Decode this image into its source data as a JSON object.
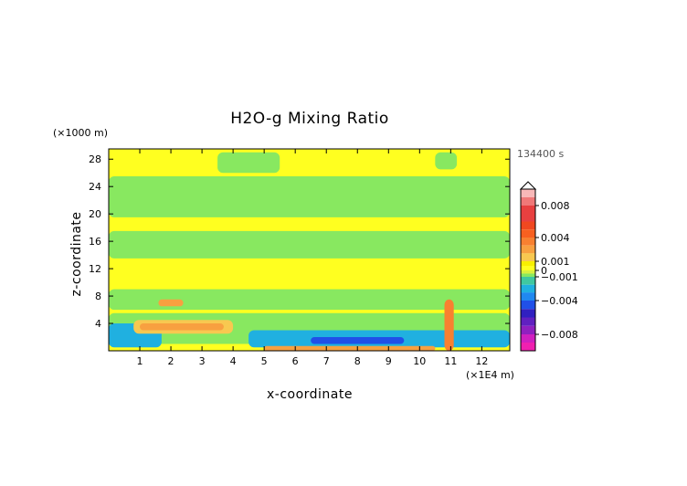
{
  "chart_data": {
    "type": "heatmap",
    "title": "H2O-g Mixing Ratio",
    "xlabel": "x-coordinate",
    "ylabel": "z-coordinate",
    "x_unit": "(×1E4 m)",
    "y_unit": "(×1000 m)",
    "timestamp": "134400 s",
    "xlim": [
      0,
      12.9
    ],
    "ylim": [
      0,
      29.5
    ],
    "x_ticks": [
      1,
      2,
      3,
      4,
      5,
      6,
      7,
      8,
      9,
      10,
      11,
      12
    ],
    "x_tick_labels": [
      "1",
      "2",
      "3",
      "4",
      "5",
      "6",
      "7",
      "8",
      "9",
      "10",
      "11",
      "12"
    ],
    "y_ticks": [
      4,
      8,
      12,
      16,
      20,
      24,
      28
    ],
    "y_tick_labels": [
      "4",
      "8",
      "12",
      "16",
      "20",
      "24",
      "28"
    ],
    "colorbar": {
      "range": [
        -0.01,
        0.01
      ],
      "tick_values": [
        0.008,
        0.004,
        0.001,
        0,
        -0.001,
        -0.004,
        -0.008
      ],
      "tick_labels": [
        "0.008",
        "0.004",
        "0.001",
        "0",
        "−0.001",
        "−0.004",
        "−0.008"
      ],
      "levels": [
        {
          "from": 0.009,
          "to": 0.01,
          "color": "#f8b8b8"
        },
        {
          "from": 0.008,
          "to": 0.009,
          "color": "#f07878"
        },
        {
          "from": 0.006,
          "to": 0.008,
          "color": "#e84040"
        },
        {
          "from": 0.005,
          "to": 0.006,
          "color": "#f04820"
        },
        {
          "from": 0.004,
          "to": 0.005,
          "color": "#f86020"
        },
        {
          "from": 0.003,
          "to": 0.004,
          "color": "#f88030"
        },
        {
          "from": 0.002,
          "to": 0.003,
          "color": "#f8a040"
        },
        {
          "from": 0.001,
          "to": 0.002,
          "color": "#f8c850"
        },
        {
          "from": 0.0005,
          "to": 0.001,
          "color": "#f8f000"
        },
        {
          "from": 0,
          "to": 0.0005,
          "color": "#ffff20"
        },
        {
          "from": -0.0005,
          "to": 0,
          "color": "#d8f040"
        },
        {
          "from": -0.001,
          "to": -0.0005,
          "color": "#88e860"
        },
        {
          "from": -0.002,
          "to": -0.001,
          "color": "#40c8a0"
        },
        {
          "from": -0.003,
          "to": -0.002,
          "color": "#20b0e0"
        },
        {
          "from": -0.004,
          "to": -0.003,
          "color": "#2088f0"
        },
        {
          "from": -0.005,
          "to": -0.004,
          "color": "#2050e8"
        },
        {
          "from": -0.006,
          "to": -0.005,
          "color": "#3020c0"
        },
        {
          "from": -0.007,
          "to": -0.006,
          "color": "#6020c0"
        },
        {
          "from": -0.008,
          "to": -0.007,
          "color": "#9020c0"
        },
        {
          "from": -0.009,
          "to": -0.008,
          "color": "#d020c0"
        },
        {
          "from": -0.01,
          "to": -0.009,
          "color": "#f020b0"
        }
      ]
    },
    "fields": [
      {
        "label": "background",
        "value": 0.0002,
        "x_range": [
          0,
          12.9
        ],
        "z_range": [
          0,
          29.5
        ]
      },
      {
        "label": "green band upper",
        "value": -0.0007,
        "x_range": [
          0,
          12.9
        ],
        "z_range": [
          19.5,
          25.5
        ]
      },
      {
        "label": "green band middle",
        "value": -0.0007,
        "x_range": [
          0,
          12.9
        ],
        "z_range": [
          13.5,
          17.5
        ]
      },
      {
        "label": "green band lower",
        "value": -0.0007,
        "x_range": [
          0,
          12.9
        ],
        "z_range": [
          6,
          9
        ]
      },
      {
        "label": "green blob top",
        "value": -0.0007,
        "x_range": [
          3.5,
          5.5
        ],
        "z_range": [
          26,
          29
        ]
      },
      {
        "label": "green blob top right",
        "value": -0.0007,
        "x_range": [
          10.5,
          11.2
        ],
        "z_range": [
          26.5,
          29
        ]
      },
      {
        "label": "green band near surface",
        "value": -0.0008,
        "x_range": [
          0,
          12.9
        ],
        "z_range": [
          1,
          5.5
        ]
      },
      {
        "label": "blue boundary layer",
        "value": -0.0028,
        "x_range": [
          4.5,
          12.9
        ],
        "z_range": [
          0.5,
          3
        ]
      },
      {
        "label": "blue boundary layer left",
        "value": -0.0028,
        "x_range": [
          0,
          1.7
        ],
        "z_range": [
          0.5,
          4
        ]
      },
      {
        "label": "deep blue patch",
        "value": -0.0042,
        "x_range": [
          6.5,
          9.5
        ],
        "z_range": [
          1,
          2
        ]
      },
      {
        "label": "yellow anomaly",
        "value": 0.0012,
        "x_range": [
          0.8,
          4
        ],
        "z_range": [
          2.5,
          4.5
        ]
      },
      {
        "label": "orange anomaly",
        "value": 0.0025,
        "x_range": [
          1,
          3.7
        ],
        "z_range": [
          3,
          4
        ]
      },
      {
        "label": "orange anomaly upper",
        "value": 0.0025,
        "x_range": [
          1.6,
          2.4
        ],
        "z_range": [
          6.5,
          7.5
        ]
      },
      {
        "label": "surface orange layer",
        "value": 0.0025,
        "x_range": [
          5,
          10.5
        ],
        "z_range": [
          0,
          0.7
        ]
      },
      {
        "label": "plume column",
        "value": 0.0035,
        "x_range": [
          10.8,
          11.1
        ],
        "z_range": [
          0,
          7.5
        ]
      }
    ]
  }
}
